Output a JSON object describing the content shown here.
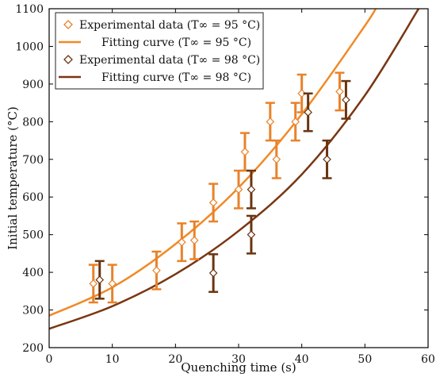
{
  "chart_data": {
    "type": "scatter",
    "title": "",
    "xlabel": "Quenching time (s)",
    "ylabel": "Initial temperature (°C)",
    "xlim": [
      0,
      60
    ],
    "ylim": [
      200,
      1100
    ],
    "xticks": [
      0,
      10,
      20,
      30,
      40,
      50,
      60
    ],
    "yticks": [
      200,
      300,
      400,
      500,
      600,
      700,
      800,
      900,
      1000,
      1100
    ],
    "grid": false,
    "legend_position": "top-left",
    "legend": [
      {
        "label": "Experimental data (T∞ = 95 °C)",
        "kind": "marker",
        "color": "#e8822a"
      },
      {
        "label": "Fitting curve (T∞ = 95 °C)",
        "kind": "line",
        "color": "#f08a28"
      },
      {
        "label": "Experimental data (T∞ = 98 °C)",
        "kind": "marker",
        "color": "#6a3410"
      },
      {
        "label": "Fitting curve (T∞ = 98 °C)",
        "kind": "line",
        "color": "#7a3612"
      }
    ],
    "series": [
      {
        "name": "Experimental data (T∞ = 95 °C)",
        "kind": "points",
        "color": "#e8822a",
        "points": [
          {
            "x": 7,
            "y": 370,
            "err": 50
          },
          {
            "x": 10,
            "y": 370,
            "err": 50
          },
          {
            "x": 17,
            "y": 405,
            "err": 50
          },
          {
            "x": 21,
            "y": 480,
            "err": 50
          },
          {
            "x": 23,
            "y": 485,
            "err": 50
          },
          {
            "x": 26,
            "y": 585,
            "err": 50
          },
          {
            "x": 30,
            "y": 620,
            "err": 50
          },
          {
            "x": 31,
            "y": 720,
            "err": 50
          },
          {
            "x": 35,
            "y": 800,
            "err": 50
          },
          {
            "x": 36,
            "y": 700,
            "err": 50
          },
          {
            "x": 39,
            "y": 800,
            "err": 50
          },
          {
            "x": 40,
            "y": 875,
            "err": 50
          },
          {
            "x": 46,
            "y": 880,
            "err": 50
          }
        ]
      },
      {
        "name": "Experimental data (T∞ = 98 °C)",
        "kind": "points",
        "color": "#6a3410",
        "points": [
          {
            "x": 8,
            "y": 380,
            "err": 50
          },
          {
            "x": 26,
            "y": 398,
            "err": 50
          },
          {
            "x": 32,
            "y": 500,
            "err": 50
          },
          {
            "x": 32,
            "y": 620,
            "err": 50
          },
          {
            "x": 41,
            "y": 825,
            "err": 50
          },
          {
            "x": 44,
            "y": 700,
            "err": 50
          },
          {
            "x": 47,
            "y": 858,
            "err": 50
          }
        ]
      },
      {
        "name": "Fitting curve (T∞ = 95 °C)",
        "kind": "line",
        "color": "#f08a28",
        "x": [
          0,
          10,
          20,
          30,
          40,
          50,
          52
        ],
        "y": [
          285,
          360,
          475,
          625,
          820,
          1055,
          1110
        ]
      },
      {
        "name": "Fitting curve (T∞ = 98 °C)",
        "kind": "line",
        "color": "#7a3612",
        "x": [
          0,
          10,
          20,
          30,
          40,
          50,
          58.5
        ],
        "y": [
          250,
          310,
          395,
          510,
          660,
          870,
          1100
        ]
      }
    ]
  }
}
